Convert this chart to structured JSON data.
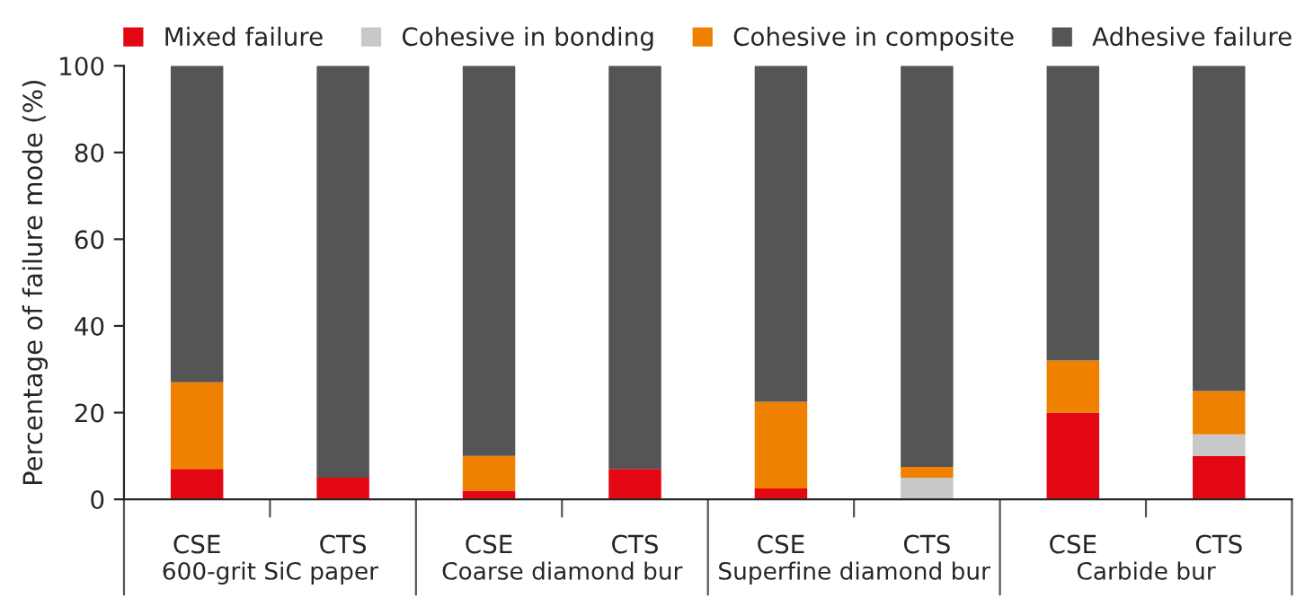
{
  "chart_data": {
    "type": "bar",
    "stacked": true,
    "ylabel": "Percentage of failure mode (%)",
    "categories": [
      "CSE",
      "CTS",
      "CSE",
      "CTS",
      "CSE",
      "CTS",
      "CSE",
      "CTS"
    ],
    "series": [
      {
        "name": "Mixed failure",
        "color": "#e30613",
        "values": [
          7,
          5,
          2,
          7,
          2.5,
          0,
          20,
          10
        ]
      },
      {
        "name": "Cohesive in bonding",
        "color": "#c8c8c8",
        "values": [
          0,
          0,
          0,
          0,
          0,
          5,
          0,
          5
        ]
      },
      {
        "name": "Cohesive in composite",
        "color": "#f08000",
        "values": [
          20,
          0,
          8,
          0,
          20,
          2.5,
          12,
          10
        ]
      },
      {
        "name": "Adhesive failure",
        "color": "#555555",
        "values": [
          73,
          95,
          90,
          93,
          77.5,
          92.5,
          68,
          75
        ]
      }
    ],
    "annotations": [
      "600-grit SiC paper",
      "Coarse diamond bur",
      "Superfine diamond bur",
      "Carbide bur"
    ],
    "ylim": [
      0,
      100
    ],
    "yticks": [
      0,
      20,
      40,
      60,
      80,
      100
    ],
    "grid": false,
    "legend": "top"
  }
}
